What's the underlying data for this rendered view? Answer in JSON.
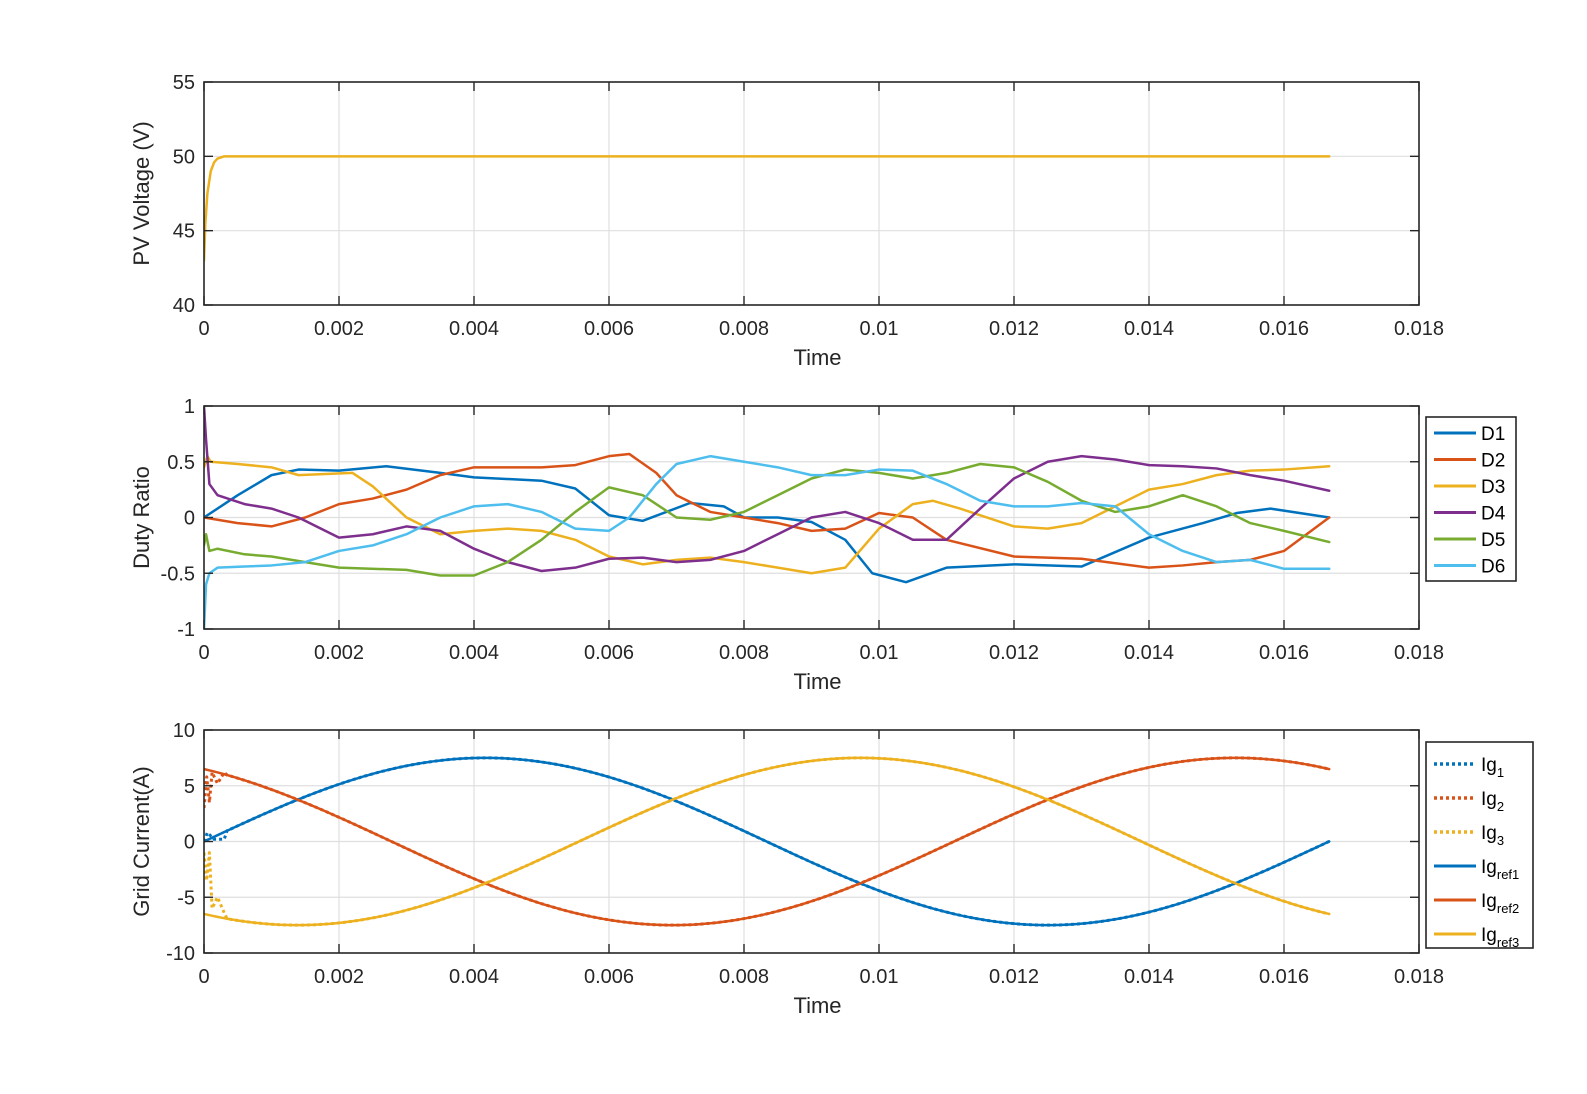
{
  "chart_data": [
    {
      "type": "line",
      "xlabel": "Time",
      "ylabel": "PV Voltage (V)",
      "xlim": [
        0,
        0.018
      ],
      "ylim": [
        40,
        55
      ],
      "xticks": [
        0,
        0.002,
        0.004,
        0.006,
        0.008,
        0.01,
        0.012,
        0.014,
        0.016,
        0.018
      ],
      "xtick_labels": [
        "0",
        "0.002",
        "0.004",
        "0.006",
        "0.008",
        "0.01",
        "0.012",
        "0.014",
        "0.016",
        "0.018"
      ],
      "yticks": [
        40,
        45,
        50,
        55
      ],
      "ytick_labels": [
        "40",
        "45",
        "50",
        "55"
      ],
      "grid": true,
      "series": [
        {
          "color": "#EDB120",
          "width": 2.5,
          "dash": "",
          "x": [
            0,
            2e-05,
            5e-05,
            0.0001,
            0.00015,
            0.0002,
            0.0003,
            0.0005,
            0.001,
            0.004,
            0.008,
            0.012,
            0.01667
          ],
          "y": [
            43.0,
            45.5,
            47.5,
            49.0,
            49.6,
            49.85,
            50.0,
            50.0,
            50.0,
            50.0,
            50.0,
            50.0,
            50.0
          ]
        }
      ]
    },
    {
      "type": "line",
      "xlabel": "Time",
      "ylabel": "Duty Ratio",
      "xlim": [
        0,
        0.018
      ],
      "ylim": [
        -1,
        1
      ],
      "xticks": [
        0,
        0.002,
        0.004,
        0.006,
        0.008,
        0.01,
        0.012,
        0.014,
        0.016,
        0.018
      ],
      "xtick_labels": [
        "0",
        "0.002",
        "0.004",
        "0.006",
        "0.008",
        "0.01",
        "0.012",
        "0.014",
        "0.016",
        "0.018"
      ],
      "yticks": [
        -1,
        -0.5,
        0,
        0.5,
        1
      ],
      "ytick_labels": [
        "-1",
        "-0.5",
        "0",
        "0.5",
        "1"
      ],
      "grid": true,
      "legend": "outside-right",
      "series": [
        {
          "name": "D1",
          "color": "#0072BD",
          "width": 2.5,
          "dash": "",
          "x": [
            0,
            0.0005,
            0.001,
            0.0014,
            0.002,
            0.0027,
            0.0035,
            0.004,
            0.005,
            0.0055,
            0.006,
            0.0065,
            0.0072,
            0.0077,
            0.008,
            0.0085,
            0.009,
            0.0095,
            0.0099,
            0.0104,
            0.011,
            0.012,
            0.013,
            0.014,
            0.0148,
            0.0153,
            0.0158,
            0.01667
          ],
          "y": [
            0.0,
            0.2,
            0.38,
            0.43,
            0.42,
            0.46,
            0.4,
            0.36,
            0.33,
            0.26,
            0.02,
            -0.03,
            0.13,
            0.1,
            0.0,
            0.0,
            -0.04,
            -0.2,
            -0.5,
            -0.58,
            -0.45,
            -0.42,
            -0.44,
            -0.18,
            -0.05,
            0.04,
            0.08,
            0.0
          ]
        },
        {
          "name": "D2",
          "color": "#D95319",
          "width": 2.5,
          "dash": "",
          "x": [
            0,
            0.0005,
            0.001,
            0.0015,
            0.002,
            0.0025,
            0.003,
            0.0035,
            0.004,
            0.005,
            0.0055,
            0.006,
            0.0063,
            0.0067,
            0.007,
            0.0075,
            0.008,
            0.0085,
            0.009,
            0.0095,
            0.01,
            0.0105,
            0.011,
            0.012,
            0.013,
            0.014,
            0.0145,
            0.015,
            0.0155,
            0.016,
            0.01667
          ],
          "y": [
            0.0,
            -0.05,
            -0.08,
            0.0,
            0.12,
            0.17,
            0.25,
            0.38,
            0.45,
            0.45,
            0.47,
            0.55,
            0.57,
            0.4,
            0.2,
            0.05,
            0.0,
            -0.05,
            -0.12,
            -0.1,
            0.04,
            0.0,
            -0.2,
            -0.35,
            -0.37,
            -0.45,
            -0.43,
            -0.4,
            -0.38,
            -0.3,
            0.0
          ]
        },
        {
          "name": "D3",
          "color": "#EDB120",
          "width": 2.5,
          "dash": "",
          "x": [
            0,
            5e-05,
            0.0001,
            0.0005,
            0.001,
            0.0014,
            0.0022,
            0.0025,
            0.003,
            0.0035,
            0.004,
            0.0045,
            0.005,
            0.0055,
            0.006,
            0.0065,
            0.007,
            0.0075,
            0.008,
            0.0085,
            0.009,
            0.0095,
            0.01,
            0.0105,
            0.0108,
            0.0112,
            0.012,
            0.0125,
            0.013,
            0.0135,
            0.014,
            0.0145,
            0.015,
            0.0155,
            0.016,
            0.01667
          ],
          "y": [
            0.45,
            0.55,
            0.5,
            0.48,
            0.45,
            0.38,
            0.4,
            0.28,
            0.0,
            -0.15,
            -0.12,
            -0.1,
            -0.12,
            -0.2,
            -0.35,
            -0.42,
            -0.38,
            -0.36,
            -0.4,
            -0.45,
            -0.5,
            -0.45,
            -0.1,
            0.12,
            0.15,
            0.08,
            -0.08,
            -0.1,
            -0.05,
            0.1,
            0.25,
            0.3,
            0.38,
            0.42,
            0.43,
            0.46
          ]
        },
        {
          "name": "D4",
          "color": "#7E2F8E",
          "width": 2.5,
          "dash": "",
          "x": [
            0,
            3e-05,
            8e-05,
            0.0002,
            0.0006,
            0.001,
            0.0014,
            0.002,
            0.0025,
            0.003,
            0.0035,
            0.004,
            0.0045,
            0.005,
            0.0055,
            0.006,
            0.0065,
            0.007,
            0.0075,
            0.008,
            0.0085,
            0.009,
            0.0095,
            0.01,
            0.0105,
            0.011,
            0.0115,
            0.012,
            0.0125,
            0.013,
            0.0135,
            0.014,
            0.0145,
            0.015,
            0.0155,
            0.016,
            0.01667
          ],
          "y": [
            1.0,
            0.7,
            0.3,
            0.2,
            0.12,
            0.08,
            0.0,
            -0.18,
            -0.15,
            -0.08,
            -0.12,
            -0.28,
            -0.4,
            -0.48,
            -0.45,
            -0.37,
            -0.36,
            -0.4,
            -0.38,
            -0.3,
            -0.15,
            0.0,
            0.05,
            -0.05,
            -0.2,
            -0.2,
            0.08,
            0.35,
            0.5,
            0.55,
            0.52,
            0.47,
            0.46,
            0.44,
            0.38,
            0.33,
            0.24
          ]
        },
        {
          "name": "D5",
          "color": "#77AC30",
          "width": 2.5,
          "dash": "",
          "x": [
            0,
            3e-05,
            8e-05,
            0.0002,
            0.0006,
            0.001,
            0.0015,
            0.002,
            0.003,
            0.0035,
            0.004,
            0.0045,
            0.005,
            0.0055,
            0.006,
            0.0065,
            0.007,
            0.0075,
            0.008,
            0.0085,
            0.009,
            0.0095,
            0.01,
            0.0105,
            0.011,
            0.0115,
            0.012,
            0.0125,
            0.013,
            0.0135,
            0.014,
            0.0145,
            0.015,
            0.0155,
            0.016,
            0.01667
          ],
          "y": [
            -0.25,
            -0.15,
            -0.3,
            -0.28,
            -0.33,
            -0.35,
            -0.4,
            -0.45,
            -0.47,
            -0.52,
            -0.52,
            -0.4,
            -0.2,
            0.05,
            0.27,
            0.2,
            0.0,
            -0.02,
            0.05,
            0.2,
            0.35,
            0.43,
            0.4,
            0.35,
            0.4,
            0.48,
            0.45,
            0.32,
            0.15,
            0.05,
            0.1,
            0.2,
            0.1,
            -0.05,
            -0.12,
            -0.22
          ]
        },
        {
          "name": "D6",
          "color": "#4DBEEE",
          "width": 2.5,
          "dash": "",
          "x": [
            0,
            3e-05,
            8e-05,
            0.0002,
            0.0006,
            0.001,
            0.0015,
            0.002,
            0.0025,
            0.003,
            0.0035,
            0.004,
            0.0045,
            0.005,
            0.0055,
            0.006,
            0.0063,
            0.0067,
            0.007,
            0.0075,
            0.008,
            0.0085,
            0.009,
            0.0095,
            0.01,
            0.0105,
            0.011,
            0.0115,
            0.012,
            0.0125,
            0.013,
            0.0135,
            0.014,
            0.0145,
            0.015,
            0.0155,
            0.016,
            0.01667
          ],
          "y": [
            -1.0,
            -0.6,
            -0.5,
            -0.45,
            -0.44,
            -0.43,
            -0.4,
            -0.3,
            -0.25,
            -0.15,
            0.0,
            0.1,
            0.12,
            0.05,
            -0.1,
            -0.12,
            0.0,
            0.3,
            0.48,
            0.55,
            0.5,
            0.45,
            0.38,
            0.38,
            0.43,
            0.42,
            0.3,
            0.15,
            0.1,
            0.1,
            0.13,
            0.1,
            -0.15,
            -0.3,
            -0.4,
            -0.38,
            -0.46,
            -0.46
          ]
        }
      ]
    },
    {
      "type": "line",
      "xlabel": "Time",
      "ylabel": "Grid Current(A)",
      "xlim": [
        0,
        0.018
      ],
      "ylim": [
        -10,
        10
      ],
      "xticks": [
        0,
        0.002,
        0.004,
        0.006,
        0.008,
        0.01,
        0.012,
        0.014,
        0.016,
        0.018
      ],
      "xtick_labels": [
        "0",
        "0.002",
        "0.004",
        "0.006",
        "0.008",
        "0.01",
        "0.012",
        "0.014",
        "0.016",
        "0.018"
      ],
      "yticks": [
        -10,
        -5,
        0,
        5,
        10
      ],
      "ytick_labels": [
        "-10",
        "-5",
        "0",
        "5",
        "10"
      ],
      "grid": true,
      "legend": "outside-right",
      "sinusoid": {
        "amplitude": 7.5,
        "frequency": 60,
        "t_end": 0.01667,
        "phases_deg": [
          0,
          120,
          -120
        ]
      },
      "series": [
        {
          "name": "Ig",
          "sub": "1",
          "color": "#0072BD",
          "width": 3,
          "dash": "3 3",
          "phase_deg": 0,
          "startup": [
            [
              0,
              0.0
            ],
            [
              5e-05,
              0.8
            ],
            [
              0.00015,
              0.2
            ],
            [
              0.0003,
              0.2
            ]
          ]
        },
        {
          "name": "Ig",
          "sub": "2",
          "color": "#D95319",
          "width": 3,
          "dash": "3 3",
          "phase_deg": 120,
          "startup": [
            [
              0,
              3.0
            ],
            [
              4e-05,
              5.8
            ],
            [
              8e-05,
              3.5
            ],
            [
              0.00012,
              6.2
            ],
            [
              0.0002,
              5.2
            ],
            [
              0.0003,
              6.2
            ]
          ]
        },
        {
          "name": "Ig",
          "sub": "3",
          "color": "#EDB120",
          "width": 3,
          "dash": "3 3",
          "phase_deg": -120,
          "startup": [
            [
              0,
              -1.0
            ],
            [
              4e-05,
              -3.5
            ],
            [
              8e-05,
              -1.0
            ],
            [
              0.00012,
              -6.0
            ],
            [
              0.0002,
              -5.0
            ],
            [
              0.0003,
              -6.4
            ]
          ]
        },
        {
          "name": "Ig",
          "sub": "ref1",
          "color": "#0072BD",
          "width": 2.5,
          "dash": "",
          "phase_deg": 0
        },
        {
          "name": "Ig",
          "sub": "ref2",
          "color": "#D95319",
          "width": 2.5,
          "dash": "",
          "phase_deg": 120
        },
        {
          "name": "Ig",
          "sub": "ref3",
          "color": "#EDB120",
          "width": 2.5,
          "dash": "",
          "phase_deg": -120
        }
      ]
    }
  ]
}
